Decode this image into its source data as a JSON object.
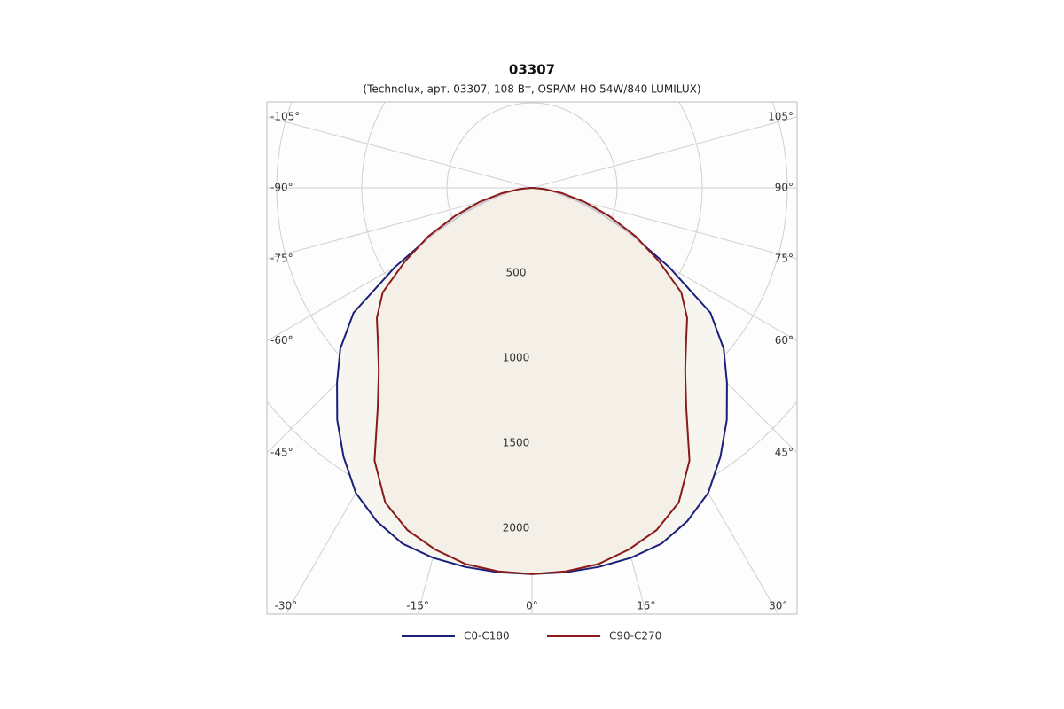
{
  "chart_data": {
    "type": "polar",
    "title": "03307",
    "subtitle": "(Technolux, арт. 03307, 108 Вт, OSRAM HO 54W/840 LUMILUX)",
    "x": [
      -90,
      -85,
      -80,
      -75,
      -70,
      -65,
      -60,
      -55,
      -50,
      -45,
      -40,
      -35,
      -30,
      -25,
      -20,
      -15,
      -10,
      -5,
      0,
      5,
      10,
      15,
      20,
      25,
      30,
      35,
      40,
      45,
      50,
      55,
      60,
      65,
      70,
      75,
      80,
      85,
      90
    ],
    "series": [
      {
        "name": "C0-C180",
        "color": "#1a1f7a",
        "values": [
          0,
          50,
          130,
          250,
          420,
          640,
          930,
          1280,
          1470,
          1620,
          1780,
          1930,
          2070,
          2160,
          2225,
          2250,
          2262,
          2268,
          2270,
          2268,
          2262,
          2250,
          2225,
          2160,
          2070,
          1930,
          1780,
          1620,
          1470,
          1280,
          930,
          640,
          420,
          250,
          130,
          50,
          0
        ]
      },
      {
        "name": "C90-C270",
        "color": "#8b1a1a",
        "values": [
          0,
          70,
          180,
          320,
          480,
          670,
          860,
          1070,
          1190,
          1280,
          1400,
          1580,
          1850,
          2040,
          2140,
          2200,
          2245,
          2262,
          2270,
          2262,
          2245,
          2200,
          2140,
          2040,
          1850,
          1580,
          1400,
          1280,
          1190,
          1070,
          860,
          670,
          480,
          320,
          180,
          70,
          0
        ]
      }
    ],
    "rlim": [
      0,
      2500
    ],
    "rticks": [
      500,
      1000,
      1500,
      2000
    ],
    "xticks": [
      {
        "value": -105,
        "label": "-105°"
      },
      {
        "value": -90,
        "label": "-90°"
      },
      {
        "value": -75,
        "label": "-75°"
      },
      {
        "value": -60,
        "label": "-60°"
      },
      {
        "value": -45,
        "label": "-45°"
      },
      {
        "value": -30,
        "label": "-30°"
      },
      {
        "value": -15,
        "label": "-15°"
      },
      {
        "value": 0,
        "label": "0°"
      },
      {
        "value": 15,
        "label": "15°"
      },
      {
        "value": 30,
        "label": "30°"
      },
      {
        "value": 45,
        "label": "45°"
      },
      {
        "value": 60,
        "label": "60°"
      },
      {
        "value": 75,
        "label": "75°"
      },
      {
        "value": 90,
        "label": "90°"
      },
      {
        "value": 105,
        "label": "105°"
      }
    ]
  }
}
